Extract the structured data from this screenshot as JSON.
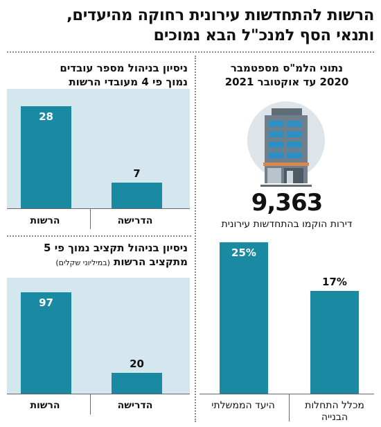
{
  "headline": {
    "line1": "הרשות להתחדשות עירונית רחוקה מהיעדים,",
    "line2": "ותנאי הסף למנכ\"ל הבא נמוכים"
  },
  "stats_panel": {
    "title_line1": "נתוני הלמ\"ס מספטמבר",
    "title_line2": "2020 עד אוקטובר 2021",
    "big_number": "9,363",
    "caption": "דירות הוקמו בהתחדשות עירונית"
  },
  "colors": {
    "bar": "#1a8aa2",
    "panel_background": "#d4e7ee",
    "building_body": "#6f7f8b",
    "building_window": "#2d8fc4",
    "building_roof": "#d9884d"
  },
  "icons": {
    "building": "apartment-building-icon"
  },
  "chart_data": [
    {
      "type": "bar",
      "title": "ניסיון בניהול מספר עובדים נמוך פי 4 מעובדי הרשות",
      "categories": [
        "הרשות",
        "הדרישה"
      ],
      "values": [
        28,
        7
      ],
      "value_labels": [
        "28",
        "7"
      ],
      "ylim": [
        0,
        30
      ]
    },
    {
      "type": "bar",
      "title": "ניסיון בניהול תקציב נמוך פי 5 מתקציב הרשות",
      "unit_note": "(במיליוני שקלים)",
      "categories": [
        "הרשות",
        "הדרישה"
      ],
      "values": [
        97,
        20
      ],
      "value_labels": [
        "97",
        "20"
      ],
      "ylim": [
        0,
        105
      ]
    },
    {
      "type": "bar",
      "categories": [
        "היעד הממשלתי",
        "מכלל התחלות הבנייה"
      ],
      "values": [
        25,
        17
      ],
      "value_labels": [
        "25%",
        "17%"
      ],
      "ylim": [
        0,
        26
      ]
    }
  ]
}
